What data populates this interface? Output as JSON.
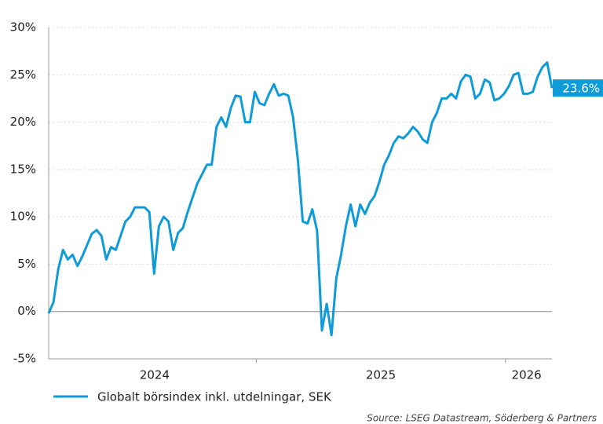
{
  "chart_data": {
    "type": "line",
    "series": [
      {
        "name": "Globalt börsindex inkl. utdelningar, SEK",
        "color": "#0f9ad8",
        "values": [
          -0.2,
          1,
          4.5,
          6.5,
          5.5,
          6,
          4.8,
          5.8,
          7,
          8.2,
          8.6,
          8,
          5.5,
          6.8,
          6.5,
          8,
          9.5,
          10,
          11,
          11,
          11,
          10.5,
          4,
          9,
          10,
          9.5,
          6.5,
          8.3,
          8.8,
          10.5,
          12,
          13.5,
          14.5,
          15.5,
          15.5,
          19.5,
          20.5,
          19.5,
          21.5,
          22.8,
          22.7,
          20,
          20,
          23.2,
          22,
          21.8,
          23,
          24,
          22.8,
          23,
          22.8,
          20.5,
          16,
          9.5,
          9.3,
          10.8,
          8.5,
          -2,
          0.8,
          -2.5,
          3.5,
          6,
          9,
          11.3,
          9,
          11.3,
          10.3,
          11.5,
          12.2,
          13.7,
          15.5,
          16.5,
          17.8,
          18.5,
          18.3,
          18.8,
          19.5,
          19,
          18.2,
          17.8,
          20,
          21,
          22.5,
          22.5,
          23,
          22.5,
          24.3,
          25,
          24.8,
          22.5,
          23,
          24.5,
          24.2,
          22.3,
          22.5,
          23,
          23.8,
          25,
          25.2,
          23,
          23,
          23.2,
          24.8,
          25.8,
          26.3,
          23.6
        ]
      }
    ],
    "last_value_label": "23.6%",
    "xlim": [
      0,
      105
    ],
    "xticks": [
      {
        "value": 22.1,
        "label": "2024"
      },
      {
        "value": 69.3,
        "label": "2025"
      },
      {
        "value": 99.7,
        "label": "2026"
      }
    ],
    "xtick_marks": [
      43.3,
      95.3
    ],
    "ylim": [
      -5,
      30
    ],
    "yticks": [
      {
        "value": -5,
        "label": "-5%"
      },
      {
        "value": 0,
        "label": "0%"
      },
      {
        "value": 5,
        "label": "5%"
      },
      {
        "value": 10,
        "label": "10%"
      },
      {
        "value": 15,
        "label": "15%"
      },
      {
        "value": 20,
        "label": "20%"
      },
      {
        "value": 25,
        "label": "25%"
      },
      {
        "value": 30,
        "label": "30%"
      }
    ],
    "grid": true,
    "source": "Source: LSEG Datastream, Söderberg & Partners"
  }
}
